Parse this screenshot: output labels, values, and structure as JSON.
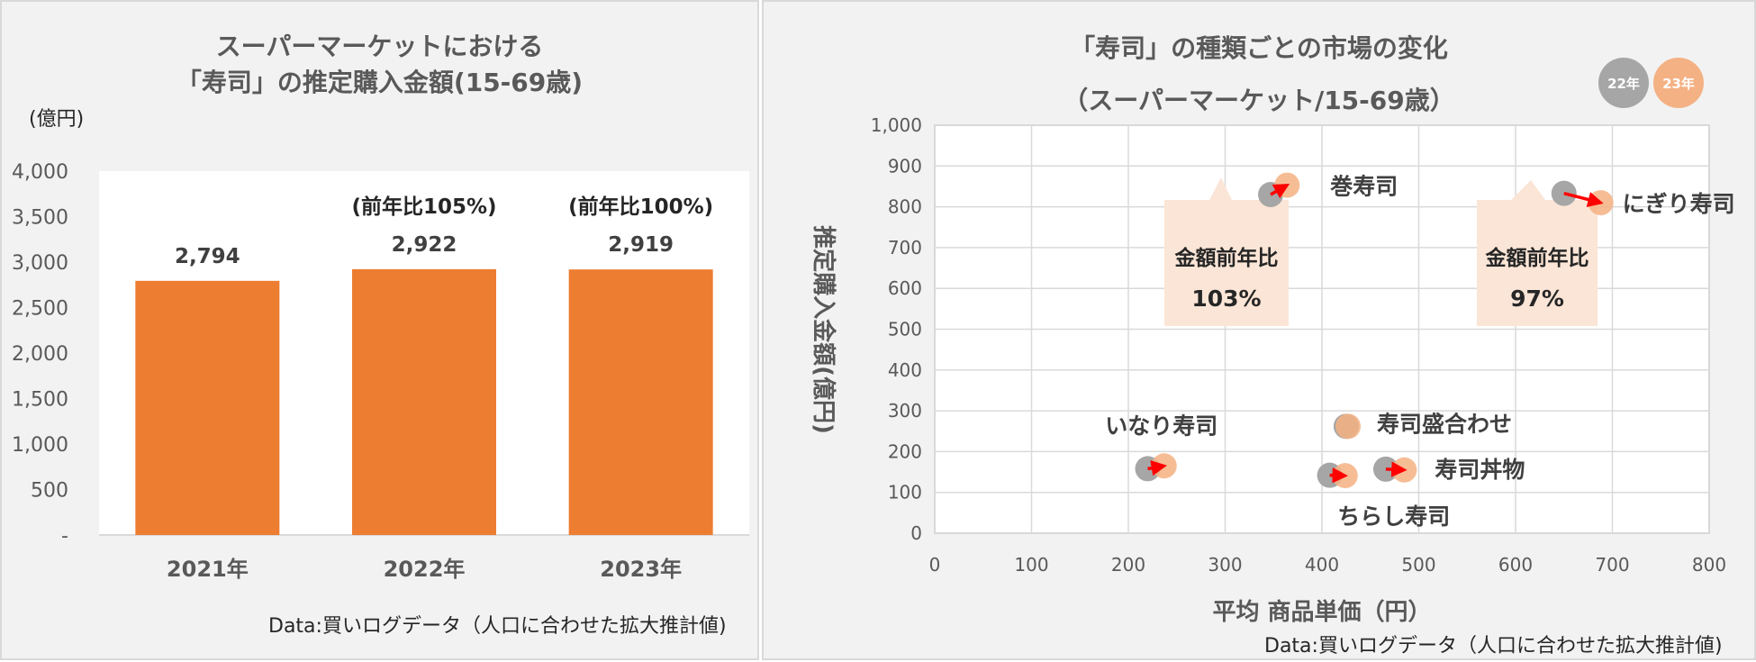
{
  "chart_data": [
    {
      "type": "bar",
      "title": [
        "スーパーマーケットにおける",
        "「寿司」の推定購入金額(15-69歳)"
      ],
      "unit_label": "(億円)",
      "categories": [
        "2021年",
        "2022年",
        "2023年"
      ],
      "values": [
        2794,
        2922,
        2919
      ],
      "value_labels": [
        "2,794",
        "2,922",
        "2,919"
      ],
      "yoy_labels": [
        "",
        "(前年比105%)",
        "(前年比100%)"
      ],
      "ylim": [
        0,
        4000
      ],
      "y_ticks": [
        "-",
        "500",
        "1,000",
        "1,500",
        "2,000",
        "2,500",
        "3,000",
        "3,500",
        "4,000"
      ],
      "bar_color": "#ed7d31",
      "source": "Data:買いログデータ（人口に合わせた拡大推計値)"
    },
    {
      "type": "scatter",
      "title": [
        "「寿司」の種類ごとの市場の変化",
        "（スーパーマーケット/15-69歳）"
      ],
      "xlabel": "平均 商品単価（円）",
      "ylabel": "推定購入金額(億円)",
      "xlim": [
        0,
        800
      ],
      "ylim": [
        0,
        1000
      ],
      "x_ticks": [
        "0",
        "100",
        "200",
        "300",
        "400",
        "500",
        "600",
        "700",
        "800"
      ],
      "y_ticks": [
        "0",
        "100",
        "200",
        "300",
        "400",
        "500",
        "600",
        "700",
        "800",
        "900",
        "1,000"
      ],
      "legend": [
        {
          "label": "22年",
          "color": "#a6a6a6"
        },
        {
          "label": "23年",
          "color": "#f4b183"
        }
      ],
      "points": [
        {
          "name": "巻寿司",
          "y22": [
            347,
            830
          ],
          "y23": [
            364,
            853
          ]
        },
        {
          "name": "にぎり寿司",
          "y22": [
            650,
            833
          ],
          "y23": [
            688,
            810
          ]
        },
        {
          "name": "いなり寿司",
          "y22": [
            220,
            158
          ],
          "y23": [
            237,
            165
          ]
        },
        {
          "name": "寿司盛合わせ",
          "y22": [
            425,
            262
          ],
          "y23": [
            427,
            262
          ]
        },
        {
          "name": "ちらし寿司",
          "y22": [
            408,
            142
          ],
          "y23": [
            424,
            141
          ]
        },
        {
          "name": "寿司丼物",
          "y22": [
            466,
            157
          ],
          "y23": [
            485,
            155
          ]
        }
      ],
      "callouts": [
        {
          "title": "金額前年比",
          "value": "103%"
        },
        {
          "title": "金額前年比",
          "value": "97%"
        }
      ],
      "arrow_color": "#ff0000",
      "source": "Data:買いログデータ（人口に合わせた拡大推計値)"
    }
  ]
}
